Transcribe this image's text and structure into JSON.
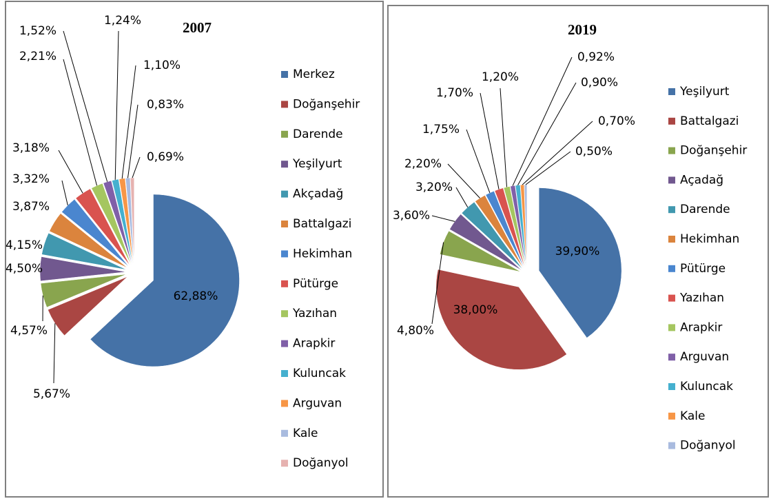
{
  "chart_data": [
    {
      "type": "pie",
      "title": "2007",
      "categories": [
        "Merkez",
        "Doğanşehir",
        "Darende",
        "Yeşilyurt",
        "Akçadağ",
        "Battalgazi",
        "Hekimhan",
        "Pütürge",
        "Yazıhan",
        "Arapkir",
        "Kuluncak",
        "Arguvan",
        "Kale",
        "Doğanyol"
      ],
      "values": [
        62.88,
        5.67,
        4.57,
        4.5,
        4.15,
        3.87,
        3.32,
        3.18,
        2.21,
        1.52,
        1.24,
        1.1,
        0.83,
        0.69
      ],
      "value_labels": [
        "62,88%",
        "5,67%",
        "4,57%",
        "4,50%",
        "4,15%",
        "3,87%",
        "3,32%",
        "3,18%",
        "2,21%",
        "1,52%",
        "1,24%",
        "1,10%",
        "0,83%",
        "0,69%"
      ],
      "colors": [
        "#4572a7",
        "#aa4643",
        "#89a54e",
        "#71588f",
        "#4198af",
        "#db843d",
        "#4a86cf",
        "#d9534f",
        "#a5c660",
        "#8060a8",
        "#45b0cf",
        "#f79646",
        "#a9bbdf",
        "#e6b2b0"
      ],
      "legend": "right"
    },
    {
      "type": "pie",
      "title": "2019",
      "categories": [
        "Yeşilyurt",
        "Battalgazi",
        "Doğanşehir",
        "Açadağ",
        "Darende",
        "Hekimhan",
        "Pütürge",
        "Yazıhan",
        "Arapkir",
        "Arguvan",
        "Kuluncak",
        "Kale",
        "Doğanyol"
      ],
      "values": [
        39.9,
        38.0,
        4.8,
        3.6,
        3.2,
        2.2,
        1.75,
        1.7,
        1.2,
        0.92,
        0.9,
        0.7,
        0.5
      ],
      "value_labels": [
        "39,90%",
        "38,00%",
        "4,80%",
        "3,60%",
        "3,20%",
        "2,20%",
        "1,75%",
        "1,70%",
        "1,20%",
        "0,92%",
        "0,90%",
        "0,70%",
        "0,50%"
      ],
      "colors": [
        "#4572a7",
        "#aa4643",
        "#89a54e",
        "#71588f",
        "#4198af",
        "#db843d",
        "#4a86cf",
        "#d9534f",
        "#a5c660",
        "#8060a8",
        "#45b0cf",
        "#f79646",
        "#a9bbdf"
      ],
      "legend": "right"
    }
  ]
}
